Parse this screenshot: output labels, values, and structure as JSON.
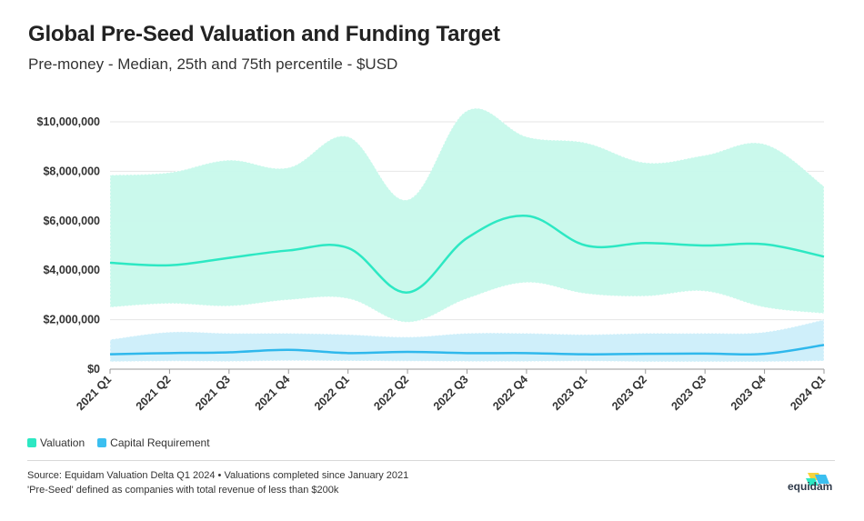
{
  "header": {
    "title": "Global Pre-Seed Valuation and Funding Target",
    "subtitle": "Pre-money - Median, 25th and 75th percentile - $USD"
  },
  "legend": {
    "items": [
      {
        "label": "Valuation",
        "color": "#2de8c3"
      },
      {
        "label": "Capital Requirement",
        "color": "#3bbff0"
      }
    ]
  },
  "footer": {
    "source_line1": "Source: Equidam Valuation Delta Q1 2024 • Valuations completed since January 2021",
    "source_line2": "'Pre-Seed' defined as companies with total revenue of less than $200k",
    "logo_text": "equidam"
  },
  "colors": {
    "valuation_line": "#2de8c3",
    "valuation_band": "#c8f9ec",
    "capital_line": "#2fb8ec",
    "capital_band": "#cdeffa",
    "grid": "#e6e6e6"
  },
  "chart_data": {
    "type": "area",
    "categories": [
      "2021 Q1",
      "2021 Q2",
      "2021 Q3",
      "2021 Q4",
      "2022 Q1",
      "2022 Q2",
      "2022 Q3",
      "2022 Q4",
      "2023 Q1",
      "2023 Q2",
      "2023 Q3",
      "2023 Q4",
      "2024 Q1"
    ],
    "ylim": [
      0,
      10000000
    ],
    "yticks": [
      0,
      2000000,
      4000000,
      6000000,
      8000000,
      10000000
    ],
    "ytick_labels": [
      "$0",
      "$2,000,000",
      "$4,000,000",
      "$6,000,000",
      "$8,000,000",
      "$10,000,000"
    ],
    "grid": true,
    "legend_position": "bottom-left",
    "series": [
      {
        "name": "Valuation",
        "median": [
          4300000,
          4200000,
          4500000,
          4800000,
          4900000,
          3100000,
          5300000,
          6200000,
          5000000,
          5100000,
          5000000,
          5050000,
          4550000
        ],
        "p25": [
          2500000,
          2650000,
          2550000,
          2800000,
          2850000,
          1900000,
          2850000,
          3500000,
          3050000,
          2950000,
          3150000,
          2500000,
          2250000
        ],
        "p75": [
          7850000,
          7950000,
          8450000,
          8150000,
          9400000,
          6850000,
          10450000,
          9400000,
          9150000,
          8350000,
          8650000,
          9100000,
          7400000
        ]
      },
      {
        "name": "Capital Requirement",
        "median": [
          600000,
          650000,
          680000,
          780000,
          650000,
          700000,
          650000,
          650000,
          600000,
          620000,
          630000,
          620000,
          980000
        ],
        "p25": [
          300000,
          320000,
          310000,
          340000,
          330000,
          320000,
          310000,
          310000,
          320000,
          300000,
          300000,
          300000,
          330000
        ],
        "p75": [
          1200000,
          1500000,
          1450000,
          1450000,
          1400000,
          1300000,
          1450000,
          1450000,
          1400000,
          1450000,
          1450000,
          1500000,
          2000000
        ]
      }
    ]
  }
}
